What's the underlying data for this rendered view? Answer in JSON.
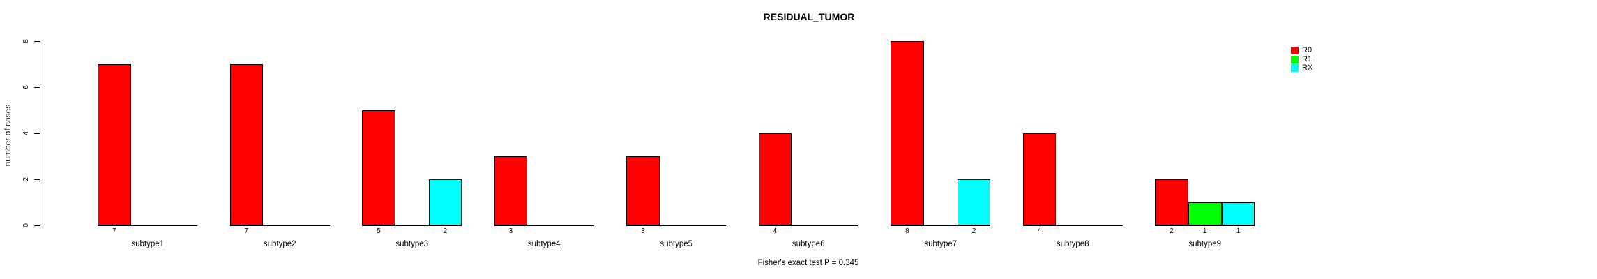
{
  "title": "RESIDUAL_TUMOR",
  "y_axis_label": "number of cases",
  "annotation": "Fisher's exact test P = 0.345",
  "legend": {
    "position": "topright",
    "entries": [
      {
        "label": "R0",
        "color": "#FF0000"
      },
      {
        "label": "R1",
        "color": "#00FF00"
      },
      {
        "label": "RX",
        "color": "#00FFFF"
      }
    ]
  },
  "colors": {
    "background": "#FFFFFF",
    "axis": "#000000",
    "bar_border": "#000000",
    "r0_red": "#FF0000",
    "r1_green": "#00FF00",
    "rx_cyan": "#00FFFF"
  },
  "chart_data": {
    "type": "bar",
    "title": "RESIDUAL_TUMOR",
    "xlabel": "",
    "ylabel": "number of cases",
    "ylim": [
      0,
      8
    ],
    "yticks": [
      0,
      2,
      4,
      6,
      8
    ],
    "grid": false,
    "legend_position": "topright",
    "categories": [
      "subtype1",
      "subtype2",
      "subtype3",
      "subtype4",
      "subtype5",
      "subtype6",
      "subtype7",
      "subtype8",
      "subtype9"
    ],
    "series": [
      {
        "name": "R0",
        "color": "#FF0000",
        "values": [
          7,
          7,
          5,
          3,
          3,
          4,
          8,
          4,
          2
        ]
      },
      {
        "name": "R1",
        "color": "#00FF00",
        "values": [
          0,
          0,
          0,
          0,
          0,
          0,
          0,
          0,
          1
        ]
      },
      {
        "name": "RX",
        "color": "#00FFFF",
        "values": [
          0,
          0,
          2,
          0,
          0,
          0,
          2,
          0,
          1
        ]
      }
    ],
    "zero_value_bars_hidden": true,
    "bar_value_labels_below_axis": true,
    "annotation": "Fisher's exact test P = 0.345"
  }
}
